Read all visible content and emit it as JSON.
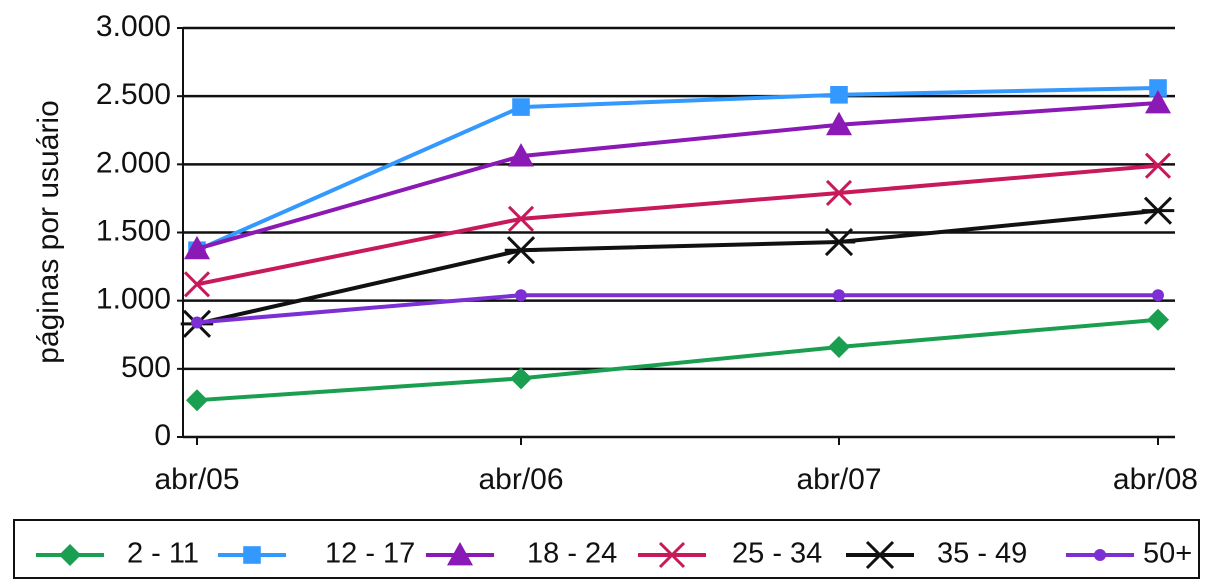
{
  "chart_data": {
    "type": "line",
    "title": "",
    "xlabel": "",
    "ylabel": "páginas por usuário",
    "categories": [
      "abr/05",
      "abr/06",
      "abr/07",
      "abr/08"
    ],
    "ylim": [
      0,
      3000
    ],
    "yticks": [
      0,
      500,
      1000,
      1500,
      2000,
      2500,
      3000
    ],
    "ytick_labels": [
      "0",
      "500",
      "1.000",
      "1.500",
      "2.000",
      "2.500",
      "3.000"
    ],
    "grid": "horizontal",
    "legend_position": "bottom",
    "series": [
      {
        "name": "2 - 11",
        "values": [
          270,
          430,
          660,
          860
        ],
        "color": "#1a9e50",
        "marker": "diamond"
      },
      {
        "name": "12 - 17",
        "values": [
          1370,
          2420,
          2510,
          2560
        ],
        "color": "#3399ff",
        "marker": "square"
      },
      {
        "name": "18 - 24",
        "values": [
          1380,
          2060,
          2290,
          2450
        ],
        "color": "#8a19b5",
        "marker": "triangle"
      },
      {
        "name": "25 - 34",
        "values": [
          1120,
          1600,
          1790,
          1990
        ],
        "color": "#c8195a",
        "marker": "x"
      },
      {
        "name": "35 - 49",
        "values": [
          830,
          1370,
          1430,
          1660
        ],
        "color": "#111111",
        "marker": "star"
      },
      {
        "name": "50+",
        "values": [
          840,
          1040,
          1040,
          1040
        ],
        "color": "#7d2fd6",
        "marker": "circle"
      }
    ]
  }
}
